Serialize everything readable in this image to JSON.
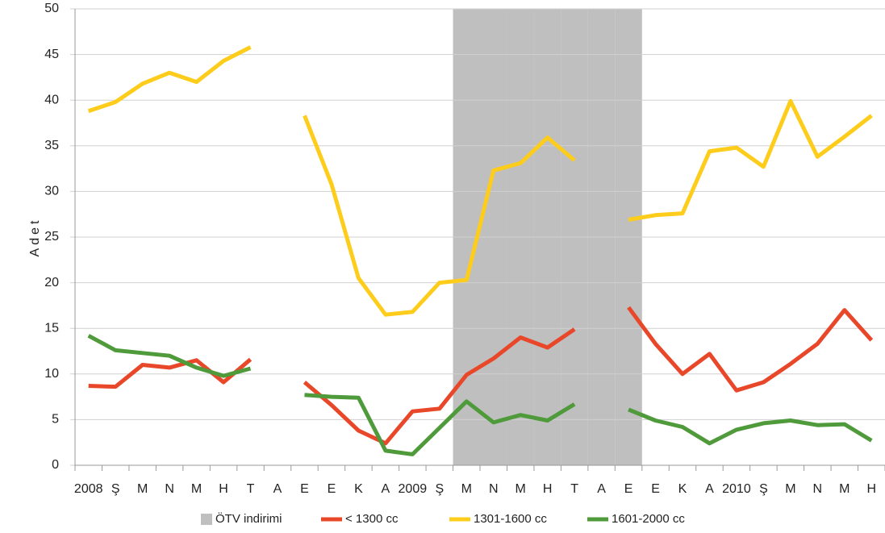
{
  "chart_data": {
    "type": "line",
    "y_label": "Adet",
    "categories": [
      "2008",
      "Ş",
      "M",
      "N",
      "M",
      "H",
      "T",
      "A",
      "E",
      "E",
      "K",
      "A",
      "2009",
      "Ş",
      "M",
      "N",
      "M",
      "H",
      "T",
      "A",
      "E",
      "E",
      "K",
      "A",
      "2010",
      "Ş",
      "M",
      "N",
      "M",
      "H"
    ],
    "ylim": [
      0,
      50
    ],
    "yticks": [
      0,
      5,
      10,
      15,
      20,
      25,
      30,
      35,
      40,
      45,
      50
    ],
    "grid": true,
    "legend": "bottom",
    "series": [
      {
        "name": "ÖTV indirimi",
        "type": "bar",
        "color": "#bfbfbf",
        "values": [
          null,
          null,
          null,
          null,
          null,
          null,
          null,
          null,
          null,
          null,
          null,
          null,
          null,
          null,
          50,
          50,
          50,
          50,
          50,
          50,
          50,
          null,
          null,
          null,
          null,
          null,
          null,
          null,
          null,
          null
        ]
      },
      {
        "name": "< 1300 cc",
        "color": "#e9472a",
        "values": [
          8.7,
          8.6,
          11.0,
          10.7,
          11.5,
          9.1,
          11.6,
          null,
          9.1,
          6.6,
          3.8,
          2.4,
          5.9,
          6.2,
          9.9,
          11.7,
          14.0,
          12.9,
          14.9,
          null,
          17.3,
          13.3,
          10.0,
          12.2,
          8.2,
          9.1,
          11.1,
          13.3,
          17.0,
          13.7
        ]
      },
      {
        "name": "1301-1600 cc",
        "color": "#fecc1b",
        "values": [
          38.8,
          39.8,
          41.8,
          43.0,
          42.0,
          44.3,
          45.8,
          null,
          38.3,
          30.8,
          20.5,
          16.5,
          16.8,
          20.0,
          20.3,
          32.3,
          33.1,
          35.9,
          33.4,
          null,
          26.9,
          27.4,
          27.6,
          34.4,
          34.8,
          32.7,
          39.9,
          33.8,
          36.0,
          38.3
        ]
      },
      {
        "name": "1601-2000 cc",
        "color": "#4f9a3a",
        "values": [
          14.2,
          12.6,
          12.3,
          12.0,
          10.7,
          9.8,
          10.6,
          null,
          7.7,
          7.5,
          7.4,
          1.6,
          1.2,
          4.1,
          7.0,
          4.7,
          5.5,
          4.9,
          6.7,
          null,
          6.1,
          4.9,
          4.2,
          2.4,
          3.9,
          4.6,
          4.9,
          4.4,
          4.5,
          2.7
        ]
      }
    ]
  }
}
